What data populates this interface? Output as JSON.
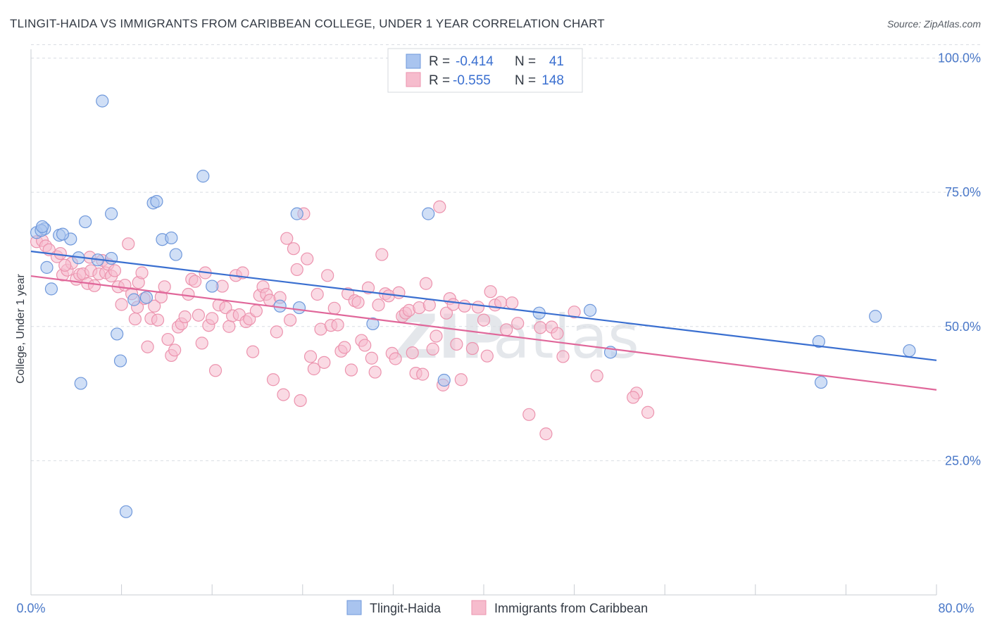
{
  "title": "TLINGIT-HAIDA VS IMMIGRANTS FROM CARIBBEAN COLLEGE, UNDER 1 YEAR CORRELATION CHART",
  "source": "Source: ZipAtlas.com",
  "watermark": {
    "zip": "ZIP",
    "atlas": "atlas"
  },
  "legend": {
    "series1": {
      "r_label": "R =",
      "r_value": "-0.414",
      "n_label": "N =",
      "n_value": "41"
    },
    "series2": {
      "r_label": "R =",
      "r_value": "-0.555",
      "n_label": "N =",
      "n_value": "148"
    }
  },
  "bottom_legend": {
    "series1": "Tlingit-Haida",
    "series2": "Immigrants from Caribbean"
  },
  "colors": {
    "blue_fill": "#a9c4ef",
    "blue_stroke": "#6f98db",
    "blue_line": "#3a6fd0",
    "pink_fill": "#f6bccd",
    "pink_stroke": "#ec93ae",
    "pink_line": "#e0679a",
    "grid": "#d9dde3",
    "tick_text": "#4a78c8"
  },
  "chart_data": {
    "type": "scatter",
    "title": "TLINGIT-HAIDA VS IMMIGRANTS FROM CARIBBEAN COLLEGE, UNDER 1 YEAR CORRELATION CHART",
    "xlabel": "",
    "ylabel": "College, Under 1 year",
    "xlim": [
      0,
      80
    ],
    "ylim": [
      0,
      105
    ],
    "x_tick_labels": [
      "0.0%",
      "80.0%"
    ],
    "y_ticks": [
      25,
      50,
      75,
      100
    ],
    "y_tick_labels": [
      "25.0%",
      "50.0%",
      "75.0%",
      "100.0%"
    ],
    "grid": true,
    "legend_position": "top-center",
    "series": [
      {
        "name": "Tlingit-Haida",
        "color": "#a9c4ef",
        "trend": {
          "x": [
            0,
            80
          ],
          "y": [
            64.0,
            43.7
          ]
        },
        "points": [
          [
            0.5,
            67.5
          ],
          [
            1.2,
            68.2
          ],
          [
            2.5,
            67.0
          ],
          [
            3.5,
            66.3
          ],
          [
            4.8,
            69.5
          ],
          [
            1.4,
            61.0
          ],
          [
            1.8,
            57.0
          ],
          [
            4.2,
            62.8
          ],
          [
            5.9,
            62.4
          ],
          [
            6.3,
            92.0
          ],
          [
            7.1,
            62.7
          ],
          [
            7.1,
            71.0
          ],
          [
            7.6,
            48.6
          ],
          [
            7.9,
            43.6
          ],
          [
            9.1,
            55.0
          ],
          [
            10.2,
            55.4
          ],
          [
            10.8,
            73.0
          ],
          [
            11.1,
            73.3
          ],
          [
            11.6,
            66.2
          ],
          [
            12.4,
            66.5
          ],
          [
            12.8,
            63.4
          ],
          [
            15.2,
            78.0
          ],
          [
            16.0,
            57.5
          ],
          [
            22.0,
            53.8
          ],
          [
            23.7,
            53.5
          ],
          [
            23.5,
            71.0
          ],
          [
            30.2,
            50.5
          ],
          [
            35.1,
            71.0
          ],
          [
            36.5,
            40.0
          ],
          [
            44.9,
            52.5
          ],
          [
            49.4,
            53.0
          ],
          [
            51.2,
            45.2
          ],
          [
            69.6,
            47.2
          ],
          [
            69.8,
            39.6
          ],
          [
            74.6,
            51.9
          ],
          [
            77.6,
            45.5
          ],
          [
            4.4,
            39.4
          ],
          [
            8.4,
            15.5
          ],
          [
            2.8,
            67.2
          ],
          [
            0.9,
            67.9
          ],
          [
            1.0,
            68.6
          ]
        ]
      },
      {
        "name": "Immigrants from Caribbean",
        "color": "#f6bccd",
        "trend": {
          "x": [
            0,
            80
          ],
          "y": [
            59.4,
            38.2
          ]
        },
        "points": [
          [
            0.5,
            65.8
          ],
          [
            1.0,
            66.0
          ],
          [
            1.3,
            65.0
          ],
          [
            1.6,
            64.3
          ],
          [
            2.3,
            63.0
          ],
          [
            2.6,
            63.6
          ],
          [
            2.8,
            59.6
          ],
          [
            3.2,
            60.5
          ],
          [
            3.6,
            61.8
          ],
          [
            4.0,
            58.8
          ],
          [
            4.3,
            59.7
          ],
          [
            4.6,
            59.8
          ],
          [
            5.0,
            58.0
          ],
          [
            5.3,
            60.4
          ],
          [
            5.6,
            57.6
          ],
          [
            6.0,
            59.8
          ],
          [
            6.3,
            62.3
          ],
          [
            6.6,
            60.0
          ],
          [
            6.8,
            61.6
          ],
          [
            7.1,
            59.4
          ],
          [
            7.4,
            60.4
          ],
          [
            7.7,
            57.4
          ],
          [
            8.0,
            54.1
          ],
          [
            8.3,
            57.7
          ],
          [
            8.6,
            65.4
          ],
          [
            8.9,
            56.1
          ],
          [
            9.2,
            51.4
          ],
          [
            9.5,
            58.2
          ],
          [
            9.8,
            60.0
          ],
          [
            10.0,
            55.2
          ],
          [
            10.3,
            46.2
          ],
          [
            10.6,
            51.5
          ],
          [
            10.9,
            53.8
          ],
          [
            11.2,
            51.2
          ],
          [
            11.5,
            55.5
          ],
          [
            11.8,
            57.4
          ],
          [
            12.1,
            47.6
          ],
          [
            12.4,
            44.6
          ],
          [
            12.7,
            45.6
          ],
          [
            13.0,
            49.9
          ],
          [
            13.3,
            50.5
          ],
          [
            13.6,
            51.8
          ],
          [
            13.9,
            56.0
          ],
          [
            14.2,
            58.8
          ],
          [
            14.5,
            58.4
          ],
          [
            14.8,
            52.1
          ],
          [
            15.1,
            46.9
          ],
          [
            15.4,
            60.0
          ],
          [
            15.7,
            50.2
          ],
          [
            16.0,
            51.5
          ],
          [
            16.3,
            41.8
          ],
          [
            16.6,
            54.0
          ],
          [
            16.9,
            57.5
          ],
          [
            17.2,
            53.5
          ],
          [
            17.5,
            50.0
          ],
          [
            17.8,
            52.0
          ],
          [
            18.1,
            59.5
          ],
          [
            18.4,
            52.2
          ],
          [
            18.7,
            60.0
          ],
          [
            19.0,
            50.9
          ],
          [
            19.3,
            51.4
          ],
          [
            19.6,
            45.3
          ],
          [
            19.9,
            52.9
          ],
          [
            20.2,
            55.8
          ],
          [
            20.5,
            57.4
          ],
          [
            20.8,
            56.0
          ],
          [
            21.1,
            54.9
          ],
          [
            21.4,
            40.1
          ],
          [
            21.7,
            49.0
          ],
          [
            22.0,
            55.4
          ],
          [
            22.3,
            37.3
          ],
          [
            22.6,
            66.4
          ],
          [
            22.9,
            51.2
          ],
          [
            23.2,
            64.5
          ],
          [
            23.5,
            60.6
          ],
          [
            23.8,
            36.2
          ],
          [
            24.1,
            71.0
          ],
          [
            24.4,
            62.6
          ],
          [
            24.7,
            44.4
          ],
          [
            25.0,
            42.1
          ],
          [
            25.3,
            56.0
          ],
          [
            25.6,
            49.5
          ],
          [
            25.9,
            43.3
          ],
          [
            26.2,
            59.5
          ],
          [
            26.5,
            50.2
          ],
          [
            26.8,
            53.4
          ],
          [
            27.1,
            50.3
          ],
          [
            27.4,
            45.4
          ],
          [
            27.7,
            46.1
          ],
          [
            28.0,
            56.1
          ],
          [
            28.3,
            41.9
          ],
          [
            28.6,
            54.8
          ],
          [
            28.9,
            54.5
          ],
          [
            29.2,
            47.4
          ],
          [
            29.5,
            46.5
          ],
          [
            29.8,
            57.2
          ],
          [
            30.1,
            44.1
          ],
          [
            30.4,
            41.5
          ],
          [
            30.7,
            54.0
          ],
          [
            31.0,
            63.4
          ],
          [
            31.3,
            56.1
          ],
          [
            31.6,
            55.7
          ],
          [
            31.9,
            45.0
          ],
          [
            32.2,
            44.0
          ],
          [
            32.5,
            56.3
          ],
          [
            32.8,
            51.9
          ],
          [
            33.1,
            52.5
          ],
          [
            33.4,
            53.0
          ],
          [
            33.7,
            45.1
          ],
          [
            34.0,
            41.3
          ],
          [
            34.3,
            53.5
          ],
          [
            34.6,
            41.1
          ],
          [
            34.9,
            58.0
          ],
          [
            35.2,
            54.0
          ],
          [
            35.5,
            45.8
          ],
          [
            35.8,
            48.2
          ],
          [
            36.1,
            72.3
          ],
          [
            36.4,
            39.1
          ],
          [
            36.7,
            52.5
          ],
          [
            37.0,
            55.2
          ],
          [
            37.3,
            54.1
          ],
          [
            37.6,
            46.7
          ],
          [
            38.0,
            40.1
          ],
          [
            38.3,
            53.8
          ],
          [
            39.0,
            45.9
          ],
          [
            39.5,
            53.6
          ],
          [
            40.0,
            51.2
          ],
          [
            40.3,
            44.5
          ],
          [
            40.6,
            56.5
          ],
          [
            41.0,
            54.0
          ],
          [
            41.5,
            54.5
          ],
          [
            42.0,
            49.4
          ],
          [
            42.5,
            54.4
          ],
          [
            43.0,
            50.6
          ],
          [
            44.0,
            33.6
          ],
          [
            45.0,
            49.8
          ],
          [
            46.0,
            49.9
          ],
          [
            46.5,
            48.7
          ],
          [
            47.0,
            44.4
          ],
          [
            48.0,
            52.7
          ],
          [
            50.0,
            40.8
          ],
          [
            53.5,
            37.6
          ],
          [
            53.2,
            36.8
          ],
          [
            54.5,
            34.0
          ],
          [
            45.5,
            30.0
          ],
          [
            3.0,
            61.4
          ],
          [
            5.2,
            62.9
          ],
          [
            9.4,
            53.6
          ]
        ]
      }
    ]
  }
}
